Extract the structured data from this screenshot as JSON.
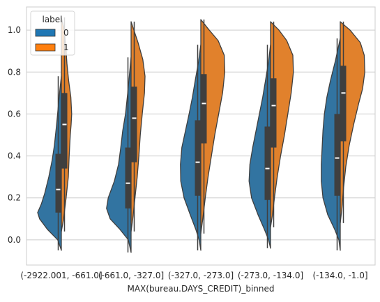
{
  "chart_data": {
    "type": "split-violin",
    "xlabel": "MAX(bureau.DAYS_CREDIT)_binned",
    "ylabel": "",
    "ylim": [
      -0.12,
      1.11
    ],
    "yticks": [
      0.0,
      0.2,
      0.4,
      0.6,
      0.8,
      1.0
    ],
    "ytick_labels": [
      "0.0",
      "0.2",
      "0.4",
      "0.6",
      "0.8",
      "1.0"
    ],
    "grid": true,
    "legend": {
      "title": "label",
      "placement": "upper-left",
      "entries": [
        {
          "name": "0",
          "color": "#1f77b4"
        },
        {
          "name": "1",
          "color": "#ff7f0e"
        }
      ]
    },
    "categories": [
      "(-2922.001, -661.0]",
      "(-661.0, -327.0]",
      "(-327.0, -273.0]",
      "(-273.0, -134.0]",
      "(-134.0, -1.0]"
    ],
    "series": [
      {
        "name": "0",
        "color": "#3274a1",
        "side": "left",
        "groups": [
          {
            "min": -0.05,
            "max": 0.78,
            "q1": 0.13,
            "median": 0.24,
            "q3": 0.41,
            "density": [
              [
                -0.05,
                0.0
              ],
              [
                0.0,
                0.13
              ],
              [
                0.05,
                0.5
              ],
              [
                0.1,
                0.78
              ],
              [
                0.13,
                0.85
              ],
              [
                0.17,
                0.72
              ],
              [
                0.22,
                0.6
              ],
              [
                0.3,
                0.45
              ],
              [
                0.38,
                0.33
              ],
              [
                0.45,
                0.25
              ],
              [
                0.55,
                0.17
              ],
              [
                0.65,
                0.1
              ],
              [
                0.72,
                0.05
              ],
              [
                0.78,
                0.0
              ]
            ]
          },
          {
            "min": -0.06,
            "max": 0.87,
            "q1": 0.15,
            "median": 0.27,
            "q3": 0.44,
            "density": [
              [
                -0.06,
                0.0
              ],
              [
                0.0,
                0.1
              ],
              [
                0.05,
                0.4
              ],
              [
                0.1,
                0.75
              ],
              [
                0.15,
                0.88
              ],
              [
                0.2,
                0.82
              ],
              [
                0.28,
                0.6
              ],
              [
                0.36,
                0.45
              ],
              [
                0.44,
                0.37
              ],
              [
                0.52,
                0.3
              ],
              [
                0.6,
                0.2
              ],
              [
                0.7,
                0.12
              ],
              [
                0.8,
                0.05
              ],
              [
                0.87,
                0.0
              ]
            ]
          },
          {
            "min": -0.05,
            "max": 0.93,
            "q1": 0.21,
            "median": 0.37,
            "q3": 0.57,
            "density": [
              [
                -0.05,
                0.0
              ],
              [
                0.0,
                0.06
              ],
              [
                0.05,
                0.18
              ],
              [
                0.12,
                0.38
              ],
              [
                0.2,
                0.6
              ],
              [
                0.28,
                0.72
              ],
              [
                0.36,
                0.73
              ],
              [
                0.44,
                0.68
              ],
              [
                0.52,
                0.55
              ],
              [
                0.6,
                0.42
              ],
              [
                0.68,
                0.3
              ],
              [
                0.76,
                0.2
              ],
              [
                0.85,
                0.08
              ],
              [
                0.93,
                0.0
              ]
            ]
          },
          {
            "min": -0.04,
            "max": 0.93,
            "q1": 0.19,
            "median": 0.34,
            "q3": 0.54,
            "density": [
              [
                -0.04,
                0.0
              ],
              [
                0.0,
                0.07
              ],
              [
                0.05,
                0.22
              ],
              [
                0.12,
                0.45
              ],
              [
                0.2,
                0.68
              ],
              [
                0.28,
                0.77
              ],
              [
                0.36,
                0.74
              ],
              [
                0.44,
                0.64
              ],
              [
                0.52,
                0.52
              ],
              [
                0.6,
                0.4
              ],
              [
                0.68,
                0.28
              ],
              [
                0.76,
                0.18
              ],
              [
                0.85,
                0.07
              ],
              [
                0.93,
                0.0
              ]
            ]
          },
          {
            "min": -0.05,
            "max": 0.96,
            "q1": 0.21,
            "median": 0.39,
            "q3": 0.6,
            "density": [
              [
                -0.05,
                0.0
              ],
              [
                0.0,
                0.05
              ],
              [
                0.05,
                0.2
              ],
              [
                0.12,
                0.45
              ],
              [
                0.2,
                0.62
              ],
              [
                0.28,
                0.68
              ],
              [
                0.36,
                0.68
              ],
              [
                0.44,
                0.65
              ],
              [
                0.52,
                0.62
              ],
              [
                0.6,
                0.57
              ],
              [
                0.68,
                0.48
              ],
              [
                0.76,
                0.35
              ],
              [
                0.85,
                0.18
              ],
              [
                0.96,
                0.0
              ]
            ]
          }
        ]
      },
      {
        "name": "1",
        "color": "#e1812c",
        "side": "right",
        "groups": [
          {
            "min": 0.04,
            "max": 1.06,
            "q1": 0.34,
            "median": 0.55,
            "q3": 0.7,
            "density": [
              [
                0.04,
                0.0
              ],
              [
                0.1,
                0.08
              ],
              [
                0.2,
                0.17
              ],
              [
                0.3,
                0.25
              ],
              [
                0.4,
                0.28
              ],
              [
                0.5,
                0.32
              ],
              [
                0.55,
                0.35
              ],
              [
                0.6,
                0.37
              ],
              [
                0.68,
                0.34
              ],
              [
                0.76,
                0.26
              ],
              [
                0.84,
                0.2
              ],
              [
                0.92,
                0.16
              ],
              [
                1.0,
                0.1
              ],
              [
                1.06,
                0.0
              ]
            ]
          },
          {
            "min": 0.04,
            "max": 1.04,
            "q1": 0.37,
            "median": 0.58,
            "q3": 0.73,
            "density": [
              [
                0.04,
                0.0
              ],
              [
                0.1,
                0.06
              ],
              [
                0.2,
                0.14
              ],
              [
                0.3,
                0.22
              ],
              [
                0.4,
                0.28
              ],
              [
                0.5,
                0.33
              ],
              [
                0.6,
                0.4
              ],
              [
                0.7,
                0.48
              ],
              [
                0.78,
                0.5
              ],
              [
                0.86,
                0.42
              ],
              [
                0.94,
                0.25
              ],
              [
                1.0,
                0.1
              ],
              [
                1.04,
                0.0
              ]
            ]
          },
          {
            "min": 0.03,
            "max": 1.05,
            "q1": 0.46,
            "median": 0.65,
            "q3": 0.79,
            "density": [
              [
                0.03,
                0.0
              ],
              [
                0.1,
                0.07
              ],
              [
                0.2,
                0.16
              ],
              [
                0.3,
                0.26
              ],
              [
                0.4,
                0.38
              ],
              [
                0.5,
                0.5
              ],
              [
                0.6,
                0.64
              ],
              [
                0.7,
                0.78
              ],
              [
                0.8,
                0.86
              ],
              [
                0.88,
                0.84
              ],
              [
                0.95,
                0.62
              ],
              [
                1.0,
                0.3
              ],
              [
                1.05,
                0.0
              ]
            ]
          },
          {
            "min": 0.06,
            "max": 1.04,
            "q1": 0.44,
            "median": 0.64,
            "q3": 0.77,
            "density": [
              [
                0.06,
                0.0
              ],
              [
                0.12,
                0.07
              ],
              [
                0.2,
                0.14
              ],
              [
                0.3,
                0.24
              ],
              [
                0.4,
                0.36
              ],
              [
                0.5,
                0.5
              ],
              [
                0.6,
                0.62
              ],
              [
                0.7,
                0.74
              ],
              [
                0.8,
                0.82
              ],
              [
                0.88,
                0.8
              ],
              [
                0.95,
                0.58
              ],
              [
                1.0,
                0.3
              ],
              [
                1.04,
                0.0
              ]
            ]
          },
          {
            "min": 0.08,
            "max": 1.04,
            "q1": 0.47,
            "median": 0.7,
            "q3": 0.83,
            "density": [
              [
                0.08,
                0.0
              ],
              [
                0.15,
                0.06
              ],
              [
                0.25,
                0.12
              ],
              [
                0.35,
                0.2
              ],
              [
                0.45,
                0.32
              ],
              [
                0.55,
                0.48
              ],
              [
                0.65,
                0.66
              ],
              [
                0.72,
                0.8
              ],
              [
                0.8,
                0.88
              ],
              [
                0.88,
                0.86
              ],
              [
                0.94,
                0.72
              ],
              [
                1.0,
                0.35
              ],
              [
                1.04,
                0.0
              ]
            ]
          }
        ]
      }
    ]
  }
}
